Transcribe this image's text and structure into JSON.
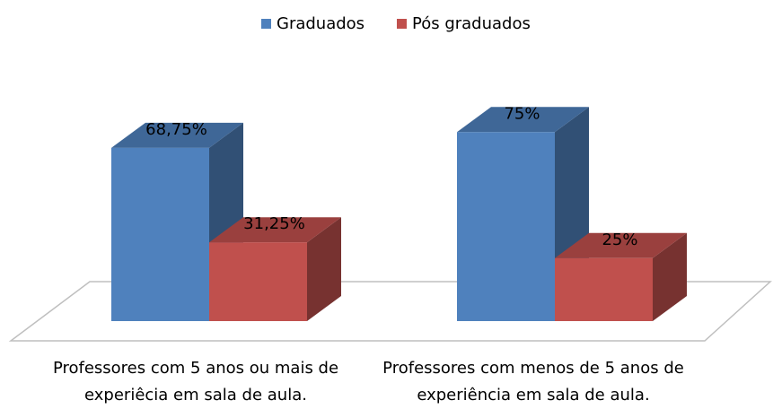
{
  "chart_data": {
    "type": "bar3d",
    "categories": [
      "Professores com 5 anos ou mais de experiêcia em sala de aula.",
      "Professores com menos de 5 anos de experiência em sala de aula."
    ],
    "series": [
      {
        "name": "Graduados",
        "color": "#4f81bd",
        "values": [
          68.75,
          75
        ],
        "value_labels": [
          "68,75%",
          "75%"
        ]
      },
      {
        "name": "Pós graduados",
        "color": "#c0504d",
        "values": [
          31.25,
          25
        ],
        "value_labels": [
          "31,25%",
          "25%"
        ]
      }
    ],
    "legend": "top"
  }
}
